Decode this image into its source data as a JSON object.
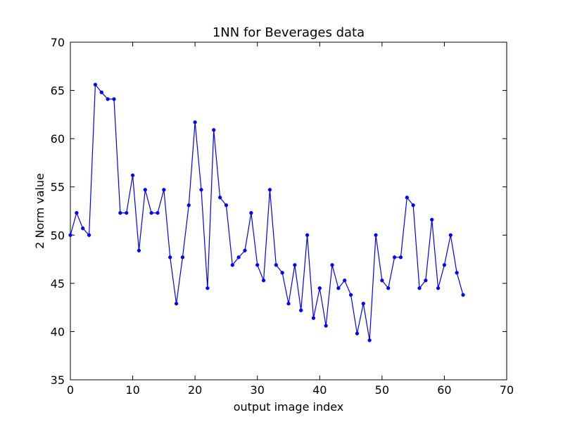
{
  "chart_data": {
    "type": "line",
    "title": "1NN for Beverages data",
    "xlabel": "output image index",
    "ylabel": "2 Norm value",
    "xlim": [
      0,
      70
    ],
    "ylim": [
      35,
      70
    ],
    "xticks": [
      0,
      10,
      20,
      30,
      40,
      50,
      60,
      70
    ],
    "yticks": [
      35,
      40,
      45,
      50,
      55,
      60,
      65,
      70
    ],
    "grid": false,
    "series": [
      {
        "color": "#0000ff",
        "marker": "circle",
        "x": [
          0,
          1,
          2,
          3,
          4,
          5,
          6,
          7,
          8,
          9,
          10,
          11,
          12,
          13,
          14,
          15,
          16,
          17,
          18,
          19,
          20,
          21,
          22,
          23,
          24,
          25,
          26,
          27,
          28,
          29,
          30,
          31,
          32,
          33,
          34,
          35,
          36,
          37,
          38,
          39,
          40,
          41,
          42,
          43,
          44,
          45,
          46,
          47,
          48,
          49,
          50,
          51,
          52,
          53,
          54,
          55,
          56,
          57,
          58,
          59,
          60,
          61,
          62,
          63
        ],
        "y": [
          50.0,
          52.3,
          50.7,
          50.0,
          65.6,
          64.8,
          64.1,
          64.1,
          52.3,
          52.3,
          56.2,
          48.4,
          54.7,
          52.3,
          52.3,
          54.7,
          47.7,
          42.9,
          47.7,
          53.1,
          61.7,
          54.7,
          44.5,
          60.9,
          53.9,
          53.1,
          46.9,
          47.7,
          48.4,
          52.3,
          46.9,
          45.3,
          54.7,
          46.9,
          46.1,
          42.9,
          46.9,
          42.2,
          50.0,
          41.4,
          44.5,
          40.6,
          46.9,
          44.5,
          45.3,
          43.8,
          39.8,
          42.9,
          39.1,
          50.0,
          45.3,
          44.5,
          47.7,
          47.7,
          53.9,
          53.1,
          44.5,
          45.3,
          51.6,
          44.5,
          46.9,
          50.0,
          46.1,
          43.8
        ]
      }
    ]
  }
}
